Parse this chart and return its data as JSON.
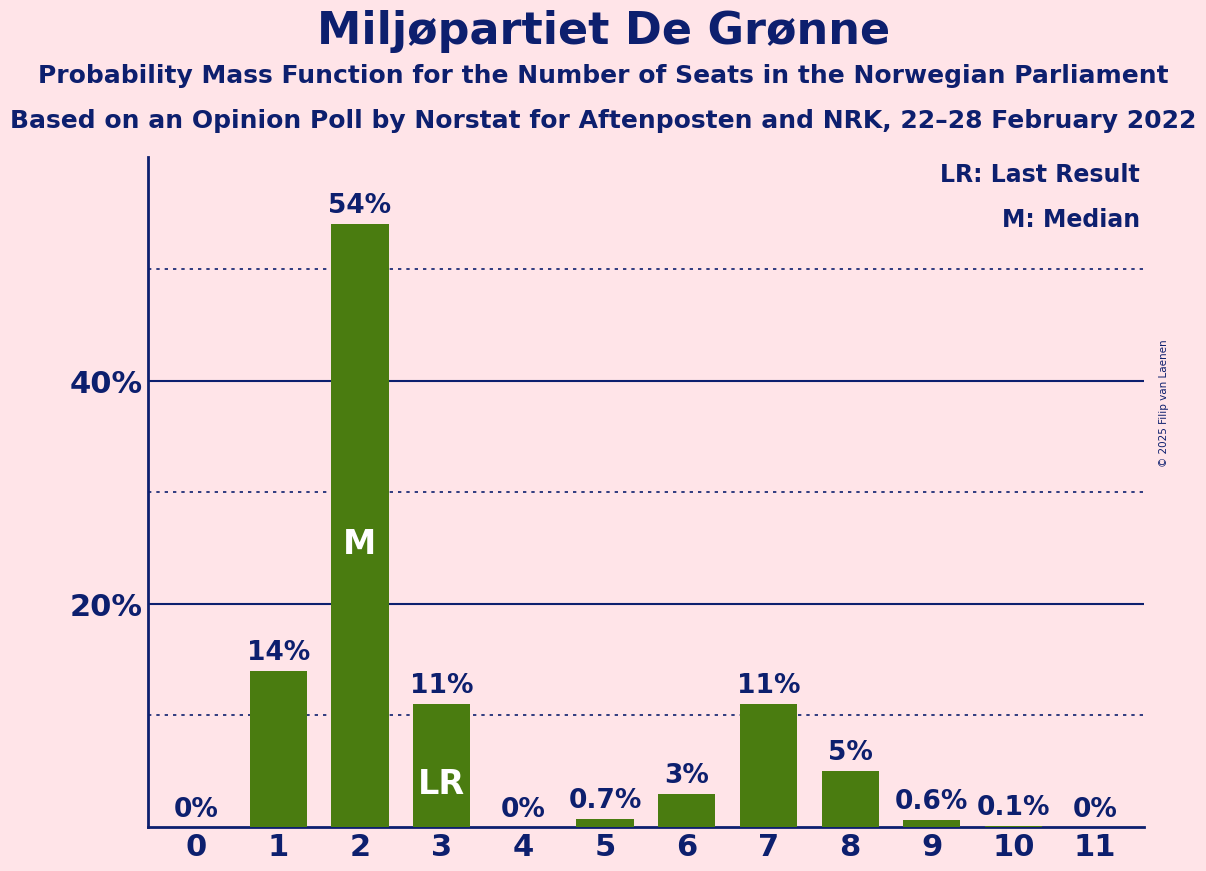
{
  "title": "Miljøpartiet De Grønne",
  "subtitle1": "Probability Mass Function for the Number of Seats in the Norwegian Parliament",
  "subtitle2": "Based on an Opinion Poll by Norstat for Aftenposten and NRK, 22–28 February 2022",
  "copyright": "© 2025 Filip van Laenen",
  "categories": [
    0,
    1,
    2,
    3,
    4,
    5,
    6,
    7,
    8,
    9,
    10,
    11
  ],
  "values": [
    0.0,
    14.0,
    54.0,
    11.0,
    0.0,
    0.7,
    3.0,
    11.0,
    5.0,
    0.6,
    0.1,
    0.0
  ],
  "bar_color": "#4a7c10",
  "background_color": "#FFE4E8",
  "text_color": "#0d1f6e",
  "bar_labels": [
    "0%",
    "14%",
    "54%",
    "11%",
    "0%",
    "0.7%",
    "3%",
    "11%",
    "5%",
    "0.6%",
    "0.1%",
    "0%"
  ],
  "lr_bar": 3,
  "median_bar": 2,
  "ylim": [
    0,
    60
  ],
  "yticks": [
    0,
    10,
    20,
    30,
    40,
    50
  ],
  "solid_yticks": [
    20,
    40
  ],
  "dotted_yticks": [
    10,
    30,
    50
  ],
  "legend_lr": "LR: Last Result",
  "legend_m": "M: Median",
  "title_fontsize": 32,
  "subtitle_fontsize": 18,
  "axis_label_fontsize": 22,
  "bar_label_fontsize": 19,
  "inside_label_fontsize": 24
}
